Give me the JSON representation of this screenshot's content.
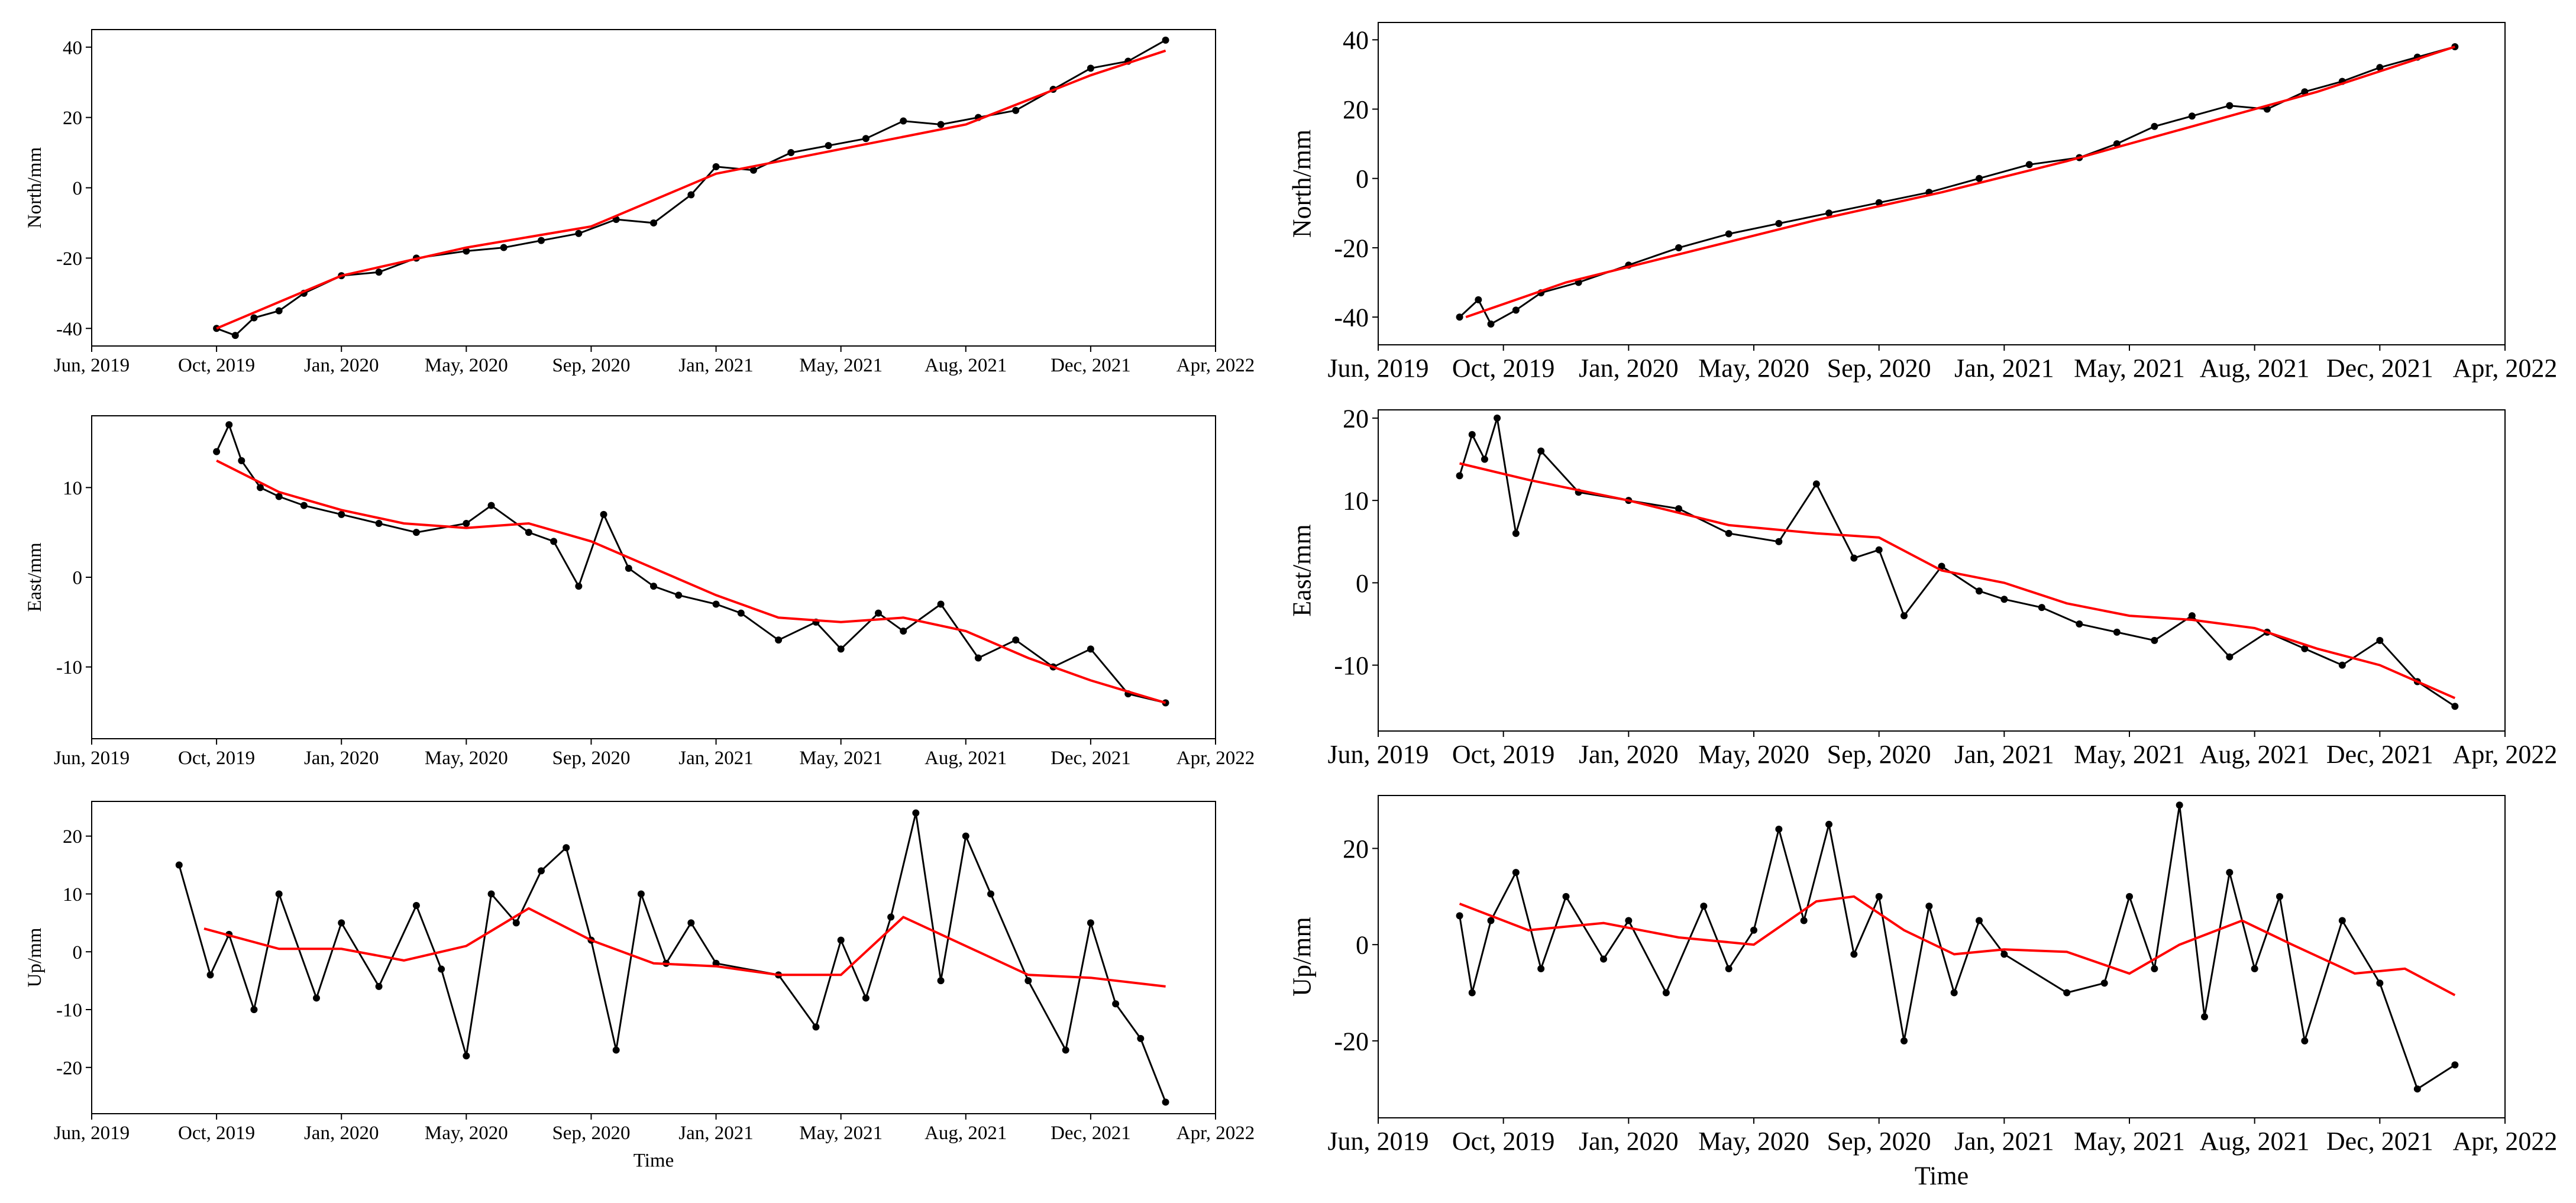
{
  "figure": {
    "x_tick_labels": [
      "Jun, 2019",
      "Oct, 2019",
      "Jan, 2020",
      "May, 2020",
      "Sep, 2020",
      "Jan, 2021",
      "May, 2021",
      "Aug, 2021",
      "Dec, 2021",
      "Apr, 2022"
    ],
    "time_label": "Time"
  },
  "colors": {
    "observed": "#000000",
    "fit": "#ff0000",
    "axes": "#000000"
  },
  "chart_data": [
    {
      "type": "line",
      "title": "",
      "ylabel": "North/mm",
      "xlabel": "",
      "xlim": [
        0,
        9
      ],
      "ylim": [
        -45,
        45
      ],
      "yticks": [
        -40,
        -20,
        0,
        20,
        40
      ],
      "x_tick_labels": [
        "Jun, 2019",
        "Oct, 2019",
        "Jan, 2020",
        "May, 2020",
        "Sep, 2020",
        "Jan, 2021",
        "May, 2021",
        "Aug, 2021",
        "Dec, 2021",
        "Apr, 2022"
      ],
      "series": [
        {
          "name": "observed",
          "x": [
            1.0,
            1.15,
            1.3,
            1.5,
            1.7,
            2.0,
            2.3,
            2.6,
            3.0,
            3.3,
            3.6,
            3.9,
            4.2,
            4.5,
            4.8,
            5.0,
            5.3,
            5.6,
            5.9,
            6.2,
            6.5,
            6.8,
            7.1,
            7.4,
            7.7,
            8.0,
            8.3,
            8.6
          ],
          "y": [
            -40,
            -42,
            -37,
            -35,
            -30,
            -25,
            -24,
            -20,
            -18,
            -17,
            -15,
            -13,
            -9,
            -10,
            -2,
            6,
            5,
            10,
            12,
            14,
            19,
            18,
            20,
            22,
            28,
            34,
            36,
            42
          ]
        },
        {
          "name": "fit",
          "x": [
            1.0,
            2.0,
            3.0,
            4.0,
            5.0,
            6.0,
            7.0,
            8.0,
            8.6
          ],
          "y": [
            -40,
            -25,
            -17,
            -11,
            4,
            11,
            18,
            32,
            39
          ]
        }
      ]
    },
    {
      "type": "line",
      "title": "",
      "ylabel": "East/mm",
      "xlabel": "",
      "xlim": [
        0,
        9
      ],
      "ylim": [
        -18,
        18
      ],
      "yticks": [
        -10,
        0,
        10
      ],
      "x_tick_labels": [
        "Jun, 2019",
        "Oct, 2019",
        "Jan, 2020",
        "May, 2020",
        "Sep, 2020",
        "Jan, 2021",
        "May, 2021",
        "Aug, 2021",
        "Dec, 2021",
        "Apr, 2022"
      ],
      "series": [
        {
          "name": "observed",
          "x": [
            1.0,
            1.1,
            1.2,
            1.35,
            1.5,
            1.7,
            2.0,
            2.3,
            2.6,
            3.0,
            3.2,
            3.5,
            3.7,
            3.9,
            4.1,
            4.3,
            4.5,
            4.7,
            5.0,
            5.2,
            5.5,
            5.8,
            6.0,
            6.3,
            6.5,
            6.8,
            7.1,
            7.4,
            7.7,
            8.0,
            8.3,
            8.6
          ],
          "y": [
            14,
            17,
            13,
            10,
            9,
            8,
            7,
            6,
            5,
            6,
            8,
            5,
            4,
            -1,
            7,
            1,
            -1,
            -2,
            -3,
            -4,
            -7,
            -5,
            -8,
            -4,
            -6,
            -3,
            -9,
            -7,
            -10,
            -8,
            -13,
            -14
          ]
        },
        {
          "name": "fit",
          "x": [
            1.0,
            1.5,
            2.0,
            2.5,
            3.0,
            3.5,
            4.0,
            4.5,
            5.0,
            5.5,
            6.0,
            6.5,
            7.0,
            7.5,
            8.0,
            8.6
          ],
          "y": [
            13,
            9.5,
            7.5,
            6,
            5.5,
            6,
            4,
            1,
            -2,
            -4.5,
            -5,
            -4.5,
            -6,
            -9,
            -11.5,
            -14
          ]
        }
      ]
    },
    {
      "type": "line",
      "title": "",
      "ylabel": "Up/mm",
      "xlabel": "Time",
      "xlim": [
        0,
        9
      ],
      "ylim": [
        -28,
        26
      ],
      "yticks": [
        -20,
        -10,
        0,
        10,
        20
      ],
      "x_tick_labels": [
        "Jun, 2019",
        "Oct, 2019",
        "Jan, 2020",
        "May, 2020",
        "Sep, 2020",
        "Jan, 2021",
        "May, 2021",
        "Aug, 2021",
        "Dec, 2021",
        "Apr, 2022"
      ],
      "series": [
        {
          "name": "observed",
          "x": [
            0.7,
            0.95,
            1.1,
            1.3,
            1.5,
            1.8,
            2.0,
            2.3,
            2.6,
            2.8,
            3.0,
            3.2,
            3.4,
            3.6,
            3.8,
            4.0,
            4.2,
            4.4,
            4.6,
            4.8,
            5.0,
            5.5,
            5.8,
            6.0,
            6.2,
            6.4,
            6.6,
            6.8,
            7.0,
            7.2,
            7.5,
            7.8,
            8.0,
            8.2,
            8.4,
            8.6
          ],
          "y": [
            15,
            -4,
            3,
            -10,
            10,
            -8,
            5,
            -6,
            8,
            -3,
            -18,
            10,
            5,
            14,
            18,
            2,
            -17,
            10,
            -2,
            5,
            -2,
            -4,
            -13,
            2,
            -8,
            6,
            24,
            -5,
            20,
            10,
            -5,
            -17,
            5,
            -9,
            -15,
            -26
          ]
        },
        {
          "name": "fit",
          "x": [
            0.9,
            1.5,
            2.0,
            2.5,
            3.0,
            3.5,
            4.0,
            4.5,
            5.0,
            5.5,
            6.0,
            6.5,
            7.0,
            7.5,
            8.0,
            8.6
          ],
          "y": [
            4,
            0.5,
            0.5,
            -1.5,
            1,
            7.5,
            2,
            -2,
            -2.5,
            -4,
            -4,
            6,
            1,
            -4,
            -4.5,
            -6
          ]
        }
      ]
    },
    {
      "type": "line",
      "title": "",
      "ylabel": "North/mm",
      "xlabel": "",
      "xlim": [
        0,
        9
      ],
      "ylim": [
        -48,
        45
      ],
      "yticks": [
        -40,
        -20,
        0,
        20,
        40
      ],
      "x_tick_labels": [
        "Jun, 2019",
        "Oct, 2019",
        "Jan, 2020",
        "May, 2020",
        "Sep, 2020",
        "Jan, 2021",
        "May, 2021",
        "Aug, 2021",
        "Dec, 2021",
        "Apr, 2022"
      ],
      "series": [
        {
          "name": "observed",
          "x": [
            0.65,
            0.8,
            0.9,
            1.1,
            1.3,
            1.6,
            2.0,
            2.4,
            2.8,
            3.2,
            3.6,
            4.0,
            4.4,
            4.8,
            5.2,
            5.6,
            5.9,
            6.2,
            6.5,
            6.8,
            7.1,
            7.4,
            7.7,
            8.0,
            8.3,
            8.6
          ],
          "y": [
            -40,
            -35,
            -42,
            -38,
            -33,
            -30,
            -25,
            -20,
            -16,
            -13,
            -10,
            -7,
            -4,
            0,
            4,
            6,
            10,
            15,
            18,
            21,
            20,
            25,
            28,
            32,
            35,
            38
          ]
        },
        {
          "name": "fit",
          "x": [
            0.7,
            1.5,
            2.5,
            3.5,
            4.5,
            5.5,
            6.5,
            7.5,
            8.6
          ],
          "y": [
            -40,
            -30,
            -21,
            -12,
            -4,
            5,
            15,
            25,
            38
          ]
        }
      ]
    },
    {
      "type": "line",
      "title": "",
      "ylabel": "East/mm",
      "xlabel": "",
      "xlim": [
        0,
        9
      ],
      "ylim": [
        -18,
        21
      ],
      "yticks": [
        -10,
        0,
        10,
        20
      ],
      "x_tick_labels": [
        "Jun, 2019",
        "Oct, 2019",
        "Jan, 2020",
        "May, 2020",
        "Sep, 2020",
        "Jan, 2021",
        "May, 2021",
        "Aug, 2021",
        "Dec, 2021",
        "Apr, 2022"
      ],
      "series": [
        {
          "name": "observed",
          "x": [
            0.65,
            0.75,
            0.85,
            0.95,
            1.1,
            1.3,
            1.6,
            2.0,
            2.4,
            2.8,
            3.2,
            3.5,
            3.8,
            4.0,
            4.2,
            4.5,
            4.8,
            5.0,
            5.3,
            5.6,
            5.9,
            6.2,
            6.5,
            6.8,
            7.1,
            7.4,
            7.7,
            8.0,
            8.3,
            8.6
          ],
          "y": [
            13,
            18,
            15,
            20,
            6,
            16,
            11,
            10,
            9,
            6,
            5,
            12,
            3,
            4,
            -4,
            2,
            -1,
            -2,
            -3,
            -5,
            -6,
            -7,
            -4,
            -9,
            -6,
            -8,
            -10,
            -7,
            -12,
            -15
          ]
        },
        {
          "name": "fit",
          "x": [
            0.65,
            1.2,
            2.0,
            2.8,
            3.5,
            4.0,
            4.5,
            5.0,
            5.5,
            6.0,
            6.5,
            7.0,
            7.5,
            8.0,
            8.6
          ],
          "y": [
            14.5,
            12.5,
            10,
            7,
            6,
            5.5,
            1.5,
            0,
            -2.5,
            -4,
            -4.5,
            -5.5,
            -8,
            -10,
            -14
          ]
        }
      ]
    },
    {
      "type": "line",
      "title": "",
      "ylabel": "Up/mm",
      "xlabel": "Time",
      "xlim": [
        0,
        9
      ],
      "ylim": [
        -36,
        31
      ],
      "yticks": [
        -20,
        0,
        20
      ],
      "x_tick_labels": [
        "Jun, 2019",
        "Oct, 2019",
        "Jan, 2020",
        "May, 2020",
        "Sep, 2020",
        "Jan, 2021",
        "May, 2021",
        "Aug, 2021",
        "Dec, 2021",
        "Apr, 2022"
      ],
      "series": [
        {
          "name": "observed",
          "x": [
            0.65,
            0.75,
            0.9,
            1.1,
            1.3,
            1.5,
            1.8,
            2.0,
            2.3,
            2.6,
            2.8,
            3.0,
            3.2,
            3.4,
            3.6,
            3.8,
            4.0,
            4.2,
            4.4,
            4.6,
            4.8,
            5.0,
            5.5,
            5.8,
            6.0,
            6.2,
            6.4,
            6.6,
            6.8,
            7.0,
            7.2,
            7.4,
            7.7,
            8.0,
            8.3,
            8.6
          ],
          "y": [
            6,
            -10,
            5,
            15,
            -5,
            10,
            -3,
            5,
            -10,
            8,
            -5,
            3,
            24,
            5,
            25,
            -2,
            10,
            -20,
            8,
            -10,
            5,
            -2,
            -10,
            -8,
            10,
            -5,
            29,
            -15,
            15,
            -5,
            10,
            -20,
            5,
            -8,
            -30,
            -25
          ]
        },
        {
          "name": "fit",
          "x": [
            0.65,
            1.2,
            1.8,
            2.4,
            3.0,
            3.5,
            3.8,
            4.2,
            4.6,
            5.0,
            5.5,
            6.0,
            6.4,
            6.9,
            7.3,
            7.8,
            8.2,
            8.6
          ],
          "y": [
            8.5,
            3,
            4.5,
            1.5,
            0,
            9,
            10,
            3,
            -2,
            -1,
            -1.5,
            -6,
            0,
            5,
            0,
            -6,
            -5,
            -10.5
          ]
        }
      ]
    }
  ]
}
